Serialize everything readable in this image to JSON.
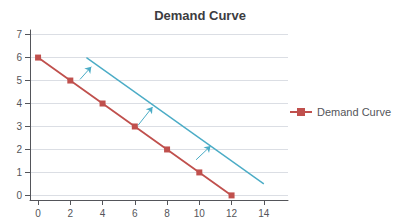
{
  "chart_data": {
    "type": "line",
    "title": "Demand Curve",
    "series": [
      {
        "x": [
          3.0,
          14.0
        ],
        "values": [
          6.0,
          0.5
        ],
        "color": "#4bacc6",
        "marker": "none"
      },
      {
        "name": "Demand Curve",
        "x": [
          0,
          2,
          4,
          6,
          8,
          10,
          12
        ],
        "values": [
          6,
          5,
          4,
          3,
          2,
          1,
          0
        ],
        "color": "#c0504d",
        "marker": "square"
      }
    ],
    "arrows": [
      {
        "x1": 2.6,
        "y1": 5.05,
        "x2": 3.3,
        "y2": 5.6,
        "color": "#4bacc6"
      },
      {
        "x1": 6.2,
        "y1": 3.05,
        "x2": 7.1,
        "y2": 3.85,
        "color": "#4bacc6"
      },
      {
        "x1": 9.8,
        "y1": 1.55,
        "x2": 10.7,
        "y2": 2.15,
        "color": "#4bacc6"
      }
    ],
    "xlim": [
      -0.5,
      15.5
    ],
    "xticks": [
      0,
      2,
      4,
      6,
      8,
      10,
      12,
      14
    ],
    "ylim": [
      -0.2,
      7.2
    ],
    "yticks": [
      0,
      1,
      2,
      3,
      4,
      5,
      6,
      7
    ],
    "grid": "y",
    "legend": "right"
  }
}
